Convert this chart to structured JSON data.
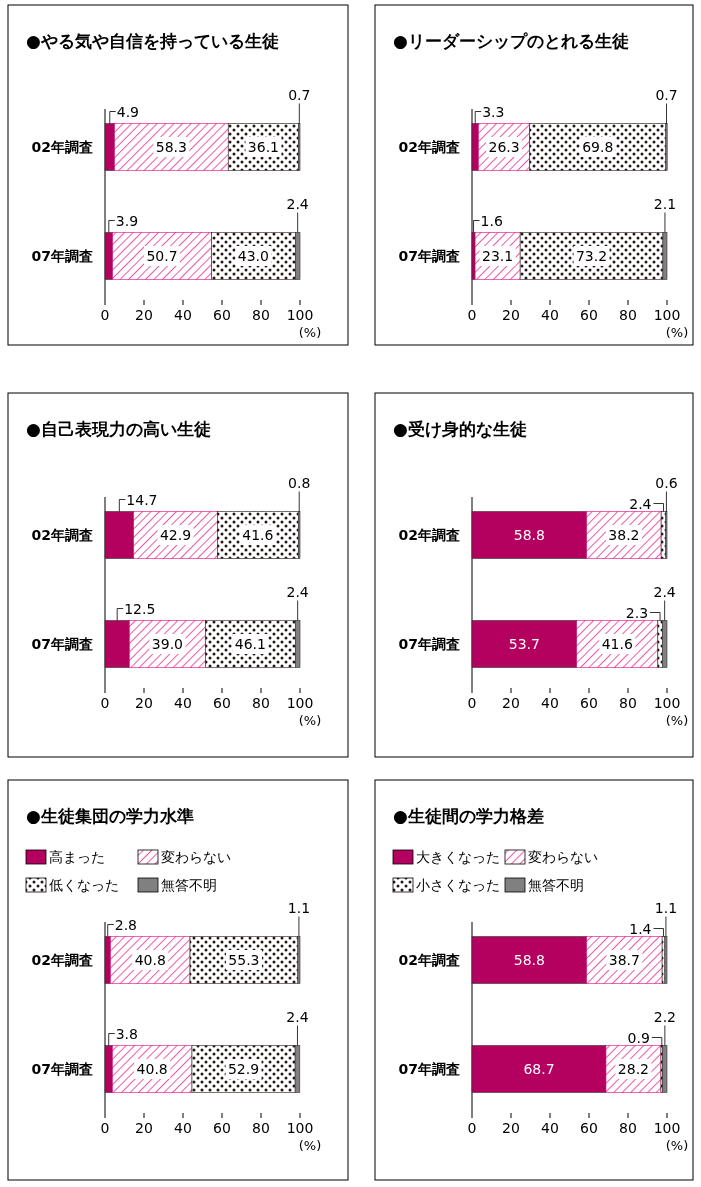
{
  "chart_data": [
    {
      "type": "bar",
      "orientation": "horizontal",
      "stacked": true,
      "title": "●やる気や自信を持っている生徒",
      "categories": [
        "02年調査",
        "07年調査"
      ],
      "xlim": [
        0,
        100
      ],
      "xticks": [
        0,
        20,
        40,
        60,
        80,
        100
      ],
      "xlabel": "(%)",
      "series": [
        {
          "color": "#b4005f",
          "values": [
            4.9,
            3.9
          ],
          "value_labels": [
            "4.9",
            "3.9"
          ]
        },
        {
          "color": "#e4007f",
          "values": [
            58.3,
            50.7
          ],
          "value_labels": [
            "58.3",
            "50.7"
          ]
        },
        {
          "color": "#231815",
          "values": [
            36.1,
            43.0
          ],
          "value_labels": [
            "36.1",
            "43.0"
          ]
        },
        {
          "color": "#808080",
          "values": [
            0.7,
            2.4
          ],
          "value_labels": [
            "0.7",
            "2.4"
          ]
        }
      ]
    },
    {
      "type": "bar",
      "orientation": "horizontal",
      "stacked": true,
      "title": "●リーダーシップのとれる生徒",
      "categories": [
        "02年調査",
        "07年調査"
      ],
      "xlim": [
        0,
        100
      ],
      "xticks": [
        0,
        20,
        40,
        60,
        80,
        100
      ],
      "xlabel": "(%)",
      "series": [
        {
          "color": "#b4005f",
          "values": [
            3.3,
            1.6
          ],
          "value_labels": [
            "3.3",
            "1.6"
          ]
        },
        {
          "color": "#e4007f",
          "values": [
            26.3,
            23.1
          ],
          "value_labels": [
            "26.3",
            "23.1"
          ]
        },
        {
          "color": "#231815",
          "values": [
            69.8,
            73.2
          ],
          "value_labels": [
            "69.8",
            "73.2"
          ]
        },
        {
          "color": "#808080",
          "values": [
            0.7,
            2.1
          ],
          "value_labels": [
            "0.7",
            "2.1"
          ]
        }
      ]
    },
    {
      "type": "bar",
      "orientation": "horizontal",
      "stacked": true,
      "title": "●自己表現力の高い生徒",
      "categories": [
        "02年調査",
        "07年調査"
      ],
      "xlim": [
        0,
        100
      ],
      "xticks": [
        0,
        20,
        40,
        60,
        80,
        100
      ],
      "xlabel": "(%)",
      "series": [
        {
          "color": "#b4005f",
          "values": [
            14.7,
            12.5
          ],
          "value_labels": [
            "14.7",
            "12.5"
          ]
        },
        {
          "color": "#e4007f",
          "values": [
            42.9,
            39.0
          ],
          "value_labels": [
            "42.9",
            "39.0"
          ]
        },
        {
          "color": "#231815",
          "values": [
            41.6,
            46.1
          ],
          "value_labels": [
            "41.6",
            "46.1"
          ]
        },
        {
          "color": "#808080",
          "values": [
            0.8,
            2.4
          ],
          "value_labels": [
            "0.8",
            "2.4"
          ]
        }
      ]
    },
    {
      "type": "bar",
      "orientation": "horizontal",
      "stacked": true,
      "title": "●受け身的な生徒",
      "categories": [
        "02年調査",
        "07年調査"
      ],
      "xlim": [
        0,
        100
      ],
      "xticks": [
        0,
        20,
        40,
        60,
        80,
        100
      ],
      "xlabel": "(%)",
      "series": [
        {
          "color": "#b4005f",
          "values": [
            58.8,
            53.7
          ],
          "value_labels": [
            "58.8",
            "53.7"
          ]
        },
        {
          "color": "#e4007f",
          "values": [
            38.2,
            41.6
          ],
          "value_labels": [
            "38.2",
            "41.6"
          ]
        },
        {
          "color": "#231815",
          "values": [
            2.4,
            2.3
          ],
          "value_labels": [
            "2.4",
            "2.3"
          ]
        },
        {
          "color": "#808080",
          "values": [
            0.6,
            2.4
          ],
          "value_labels": [
            "0.6",
            "2.4"
          ]
        }
      ]
    },
    {
      "type": "bar",
      "orientation": "horizontal",
      "stacked": true,
      "title": "●生徒集団の学力水準",
      "legend": "top left",
      "categories": [
        "02年調査",
        "07年調査"
      ],
      "xlim": [
        0,
        100
      ],
      "xticks": [
        0,
        20,
        40,
        60,
        80,
        100
      ],
      "xlabel": "(%)",
      "series": [
        {
          "name": "高まった",
          "color": "#b4005f",
          "values": [
            2.8,
            3.8
          ],
          "value_labels": [
            "2.8",
            "3.8"
          ]
        },
        {
          "name": "変わらない",
          "color": "#e4007f",
          "values": [
            40.8,
            40.8
          ],
          "value_labels": [
            "40.8",
            "40.8"
          ]
        },
        {
          "name": "低くなった",
          "color": "#231815",
          "values": [
            55.3,
            52.9
          ],
          "value_labels": [
            "55.3",
            "52.9"
          ]
        },
        {
          "name": "無答不明",
          "color": "#808080",
          "values": [
            1.1,
            2.4
          ],
          "value_labels": [
            "1.1",
            "2.4"
          ]
        }
      ]
    },
    {
      "type": "bar",
      "orientation": "horizontal",
      "stacked": true,
      "title": "●生徒間の学力格差",
      "legend": "top left",
      "categories": [
        "02年調査",
        "07年調査"
      ],
      "xlim": [
        0,
        100
      ],
      "xticks": [
        0,
        20,
        40,
        60,
        80,
        100
      ],
      "xlabel": "(%)",
      "series": [
        {
          "name": "大きくなった",
          "color": "#b4005f",
          "values": [
            58.8,
            68.7
          ],
          "value_labels": [
            "58.8",
            "68.7"
          ]
        },
        {
          "name": "変わらない",
          "color": "#e4007f",
          "values": [
            38.7,
            28.2
          ],
          "value_labels": [
            "38.7",
            "28.2"
          ]
        },
        {
          "name": "小さくなった",
          "color": "#231815",
          "values": [
            1.4,
            0.9
          ],
          "value_labels": [
            "1.4",
            "0.9"
          ]
        },
        {
          "name": "無答不明",
          "color": "#808080",
          "values": [
            1.1,
            2.2
          ],
          "value_labels": [
            "1.1",
            "2.2"
          ]
        }
      ]
    }
  ]
}
